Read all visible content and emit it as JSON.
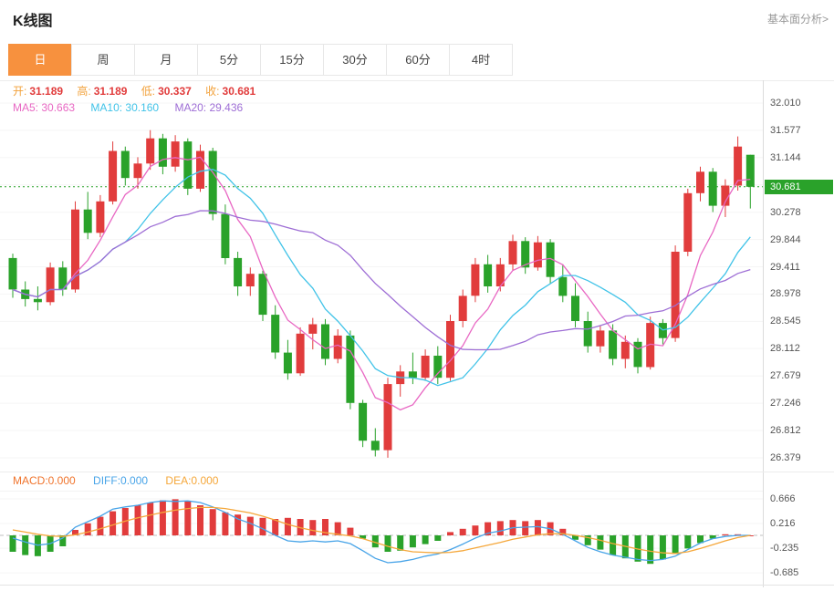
{
  "header": {
    "title": "K线图",
    "link": "基本面分析>"
  },
  "tabs": {
    "items": [
      "日",
      "周",
      "月",
      "5分",
      "15分",
      "30分",
      "60分",
      "4时"
    ],
    "active_index": 0
  },
  "ohlc": {
    "items": [
      {
        "label": "开:",
        "value": "31.189"
      },
      {
        "label": "高:",
        "value": "31.189"
      },
      {
        "label": "低:",
        "value": "30.337"
      },
      {
        "label": "收:",
        "value": "30.681"
      }
    ]
  },
  "ma": {
    "items": [
      {
        "text": "MA5: 30.663"
      },
      {
        "text": "MA10: 30.160"
      },
      {
        "text": "MA20: 29.436"
      }
    ]
  },
  "macd_legend": {
    "items": [
      {
        "text": "MACD:0.000"
      },
      {
        "text": "DIFF:0.000"
      },
      {
        "text": "DEA:0.000"
      }
    ]
  },
  "colors": {
    "up": "#e13c3c",
    "down": "#2aa22a",
    "current": "#2aa22a",
    "label_orange": "#f2a23c",
    "ma5": "#e867c3",
    "ma10": "#41c3e8",
    "ma20": "#9e6ed5",
    "macd": "#f0742c",
    "diff": "#48a4e8",
    "dea": "#f5a73a",
    "tab_active": "#f7913e"
  },
  "chart_data": {
    "type": "candlestick",
    "title": "K线图",
    "legend": [
      "MA5",
      "MA10",
      "MA20"
    ],
    "grid": true,
    "price_axis": {
      "labels": [
        "32.010",
        "31.577",
        "31.144",
        "30.681",
        "30.278",
        "29.844",
        "29.411",
        "28.978",
        "28.545",
        "28.112",
        "27.679",
        "27.246",
        "26.812",
        "26.379"
      ],
      "current_index": 3,
      "current": 30.681,
      "ylim": [
        26.379,
        32.01
      ]
    },
    "current_ohlc": {
      "open": 31.189,
      "high": 31.189,
      "low": 30.337,
      "close": 30.681
    },
    "ma_values": {
      "ma5": 30.663,
      "ma10": 30.16,
      "ma20": 29.436
    },
    "candles": [
      [
        29.55,
        29.62,
        28.92,
        29.05
      ],
      [
        29.05,
        29.18,
        28.78,
        28.9
      ],
      [
        28.9,
        29.1,
        28.72,
        28.85
      ],
      [
        28.85,
        29.48,
        28.8,
        29.4
      ],
      [
        29.4,
        29.5,
        28.95,
        29.05
      ],
      [
        29.05,
        30.45,
        29.0,
        30.32
      ],
      [
        30.32,
        30.6,
        29.85,
        29.95
      ],
      [
        29.95,
        30.55,
        29.88,
        30.45
      ],
      [
        30.45,
        31.4,
        30.4,
        31.25
      ],
      [
        31.25,
        31.32,
        30.7,
        30.82
      ],
      [
        30.82,
        31.15,
        30.65,
        31.05
      ],
      [
        31.05,
        31.58,
        30.95,
        31.45
      ],
      [
        31.45,
        31.52,
        30.88,
        31.0
      ],
      [
        31.0,
        31.5,
        30.92,
        31.4
      ],
      [
        31.4,
        31.45,
        30.55,
        30.65
      ],
      [
        30.65,
        31.35,
        30.6,
        31.25
      ],
      [
        31.25,
        31.3,
        30.15,
        30.25
      ],
      [
        30.25,
        30.4,
        29.45,
        29.55
      ],
      [
        29.55,
        29.65,
        28.95,
        29.1
      ],
      [
        29.1,
        29.4,
        28.95,
        29.3
      ],
      [
        29.3,
        29.35,
        28.55,
        28.65
      ],
      [
        28.65,
        28.8,
        27.95,
        28.05
      ],
      [
        28.05,
        28.25,
        27.62,
        27.72
      ],
      [
        27.72,
        28.45,
        27.68,
        28.35
      ],
      [
        28.35,
        28.6,
        28.1,
        28.5
      ],
      [
        28.5,
        28.58,
        27.85,
        27.95
      ],
      [
        27.95,
        28.42,
        27.88,
        28.32
      ],
      [
        28.32,
        28.4,
        27.15,
        27.25
      ],
      [
        27.25,
        27.3,
        26.55,
        26.65
      ],
      [
        26.65,
        26.85,
        26.4,
        26.5
      ],
      [
        26.5,
        27.65,
        26.38,
        27.55
      ],
      [
        27.55,
        27.85,
        27.35,
        27.75
      ],
      [
        27.75,
        28.05,
        27.55,
        27.65
      ],
      [
        27.65,
        28.1,
        27.6,
        28.0
      ],
      [
        28.0,
        28.15,
        27.55,
        27.65
      ],
      [
        27.65,
        28.65,
        27.6,
        28.55
      ],
      [
        28.55,
        29.05,
        28.45,
        28.95
      ],
      [
        28.95,
        29.55,
        28.85,
        29.45
      ],
      [
        29.45,
        29.6,
        29.0,
        29.1
      ],
      [
        29.1,
        29.55,
        29.02,
        29.45
      ],
      [
        29.45,
        29.92,
        29.35,
        29.82
      ],
      [
        29.82,
        29.88,
        29.3,
        29.4
      ],
      [
        29.4,
        29.9,
        29.35,
        29.8
      ],
      [
        29.8,
        29.85,
        29.15,
        29.25
      ],
      [
        29.25,
        29.45,
        28.85,
        28.95
      ],
      [
        28.95,
        29.15,
        28.45,
        28.55
      ],
      [
        28.55,
        28.7,
        28.05,
        28.15
      ],
      [
        28.15,
        28.48,
        28.05,
        28.4
      ],
      [
        28.4,
        28.5,
        27.85,
        27.95
      ],
      [
        27.95,
        28.32,
        27.8,
        28.22
      ],
      [
        28.22,
        28.28,
        27.72,
        27.82
      ],
      [
        27.82,
        28.62,
        27.78,
        28.52
      ],
      [
        28.52,
        28.58,
        28.18,
        28.28
      ],
      [
        28.28,
        29.75,
        28.22,
        29.65
      ],
      [
        29.65,
        30.65,
        29.58,
        30.58
      ],
      [
        30.58,
        31.0,
        30.45,
        30.92
      ],
      [
        30.92,
        30.98,
        30.28,
        30.38
      ],
      [
        30.38,
        30.8,
        30.2,
        30.7
      ],
      [
        30.7,
        31.48,
        30.62,
        31.32
      ],
      [
        31.189,
        31.189,
        30.337,
        30.681
      ]
    ],
    "ma_periods": [
      5,
      10,
      20
    ],
    "macd": {
      "axis_labels": [
        "0.666",
        "0.216",
        "-0.235",
        "-0.685"
      ],
      "current": {
        "macd": 0.0,
        "diff": 0.0,
        "dea": 0.0
      },
      "histogram": [
        -0.3,
        -0.36,
        -0.38,
        -0.3,
        -0.2,
        0.1,
        0.22,
        0.34,
        0.44,
        0.5,
        0.55,
        0.6,
        0.64,
        0.66,
        0.62,
        0.55,
        0.48,
        0.42,
        0.38,
        0.34,
        0.32,
        0.3,
        0.32,
        0.3,
        0.28,
        0.3,
        0.24,
        0.14,
        -0.06,
        -0.22,
        -0.3,
        -0.28,
        -0.22,
        -0.16,
        -0.1,
        0.06,
        0.12,
        0.18,
        0.24,
        0.26,
        0.28,
        0.26,
        0.28,
        0.24,
        0.12,
        -0.08,
        -0.18,
        -0.26,
        -0.36,
        -0.42,
        -0.48,
        -0.52,
        -0.44,
        -0.34,
        -0.24,
        -0.14,
        -0.06,
        0.02,
        0.02,
        0.0
      ],
      "diff": [
        -0.05,
        -0.12,
        -0.18,
        -0.15,
        -0.05,
        0.15,
        0.25,
        0.35,
        0.48,
        0.52,
        0.55,
        0.6,
        0.63,
        0.62,
        0.63,
        0.6,
        0.52,
        0.42,
        0.3,
        0.22,
        0.12,
        0.0,
        -0.1,
        -0.12,
        -0.1,
        -0.12,
        -0.1,
        -0.15,
        -0.28,
        -0.42,
        -0.5,
        -0.48,
        -0.44,
        -0.38,
        -0.34,
        -0.26,
        -0.16,
        -0.05,
        0.04,
        0.08,
        0.14,
        0.15,
        0.16,
        0.12,
        0.02,
        -0.1,
        -0.22,
        -0.3,
        -0.36,
        -0.4,
        -0.44,
        -0.46,
        -0.44,
        -0.38,
        -0.26,
        -0.14,
        -0.06,
        -0.02,
        0.0,
        0.0
      ],
      "dea": [
        0.1,
        0.06,
        0.02,
        -0.01,
        -0.02,
        0.01,
        0.06,
        0.12,
        0.19,
        0.26,
        0.32,
        0.37,
        0.42,
        0.46,
        0.49,
        0.51,
        0.51,
        0.49,
        0.45,
        0.41,
        0.35,
        0.28,
        0.2,
        0.14,
        0.09,
        0.05,
        0.02,
        -0.01,
        -0.06,
        -0.13,
        -0.2,
        -0.26,
        -0.3,
        -0.31,
        -0.32,
        -0.31,
        -0.28,
        -0.23,
        -0.18,
        -0.13,
        -0.07,
        -0.03,
        0.01,
        0.03,
        0.03,
        0.0,
        -0.04,
        -0.09,
        -0.15,
        -0.2,
        -0.25,
        -0.29,
        -0.32,
        -0.33,
        -0.3,
        -0.24,
        -0.17,
        -0.1,
        -0.04,
        0.0
      ]
    }
  }
}
